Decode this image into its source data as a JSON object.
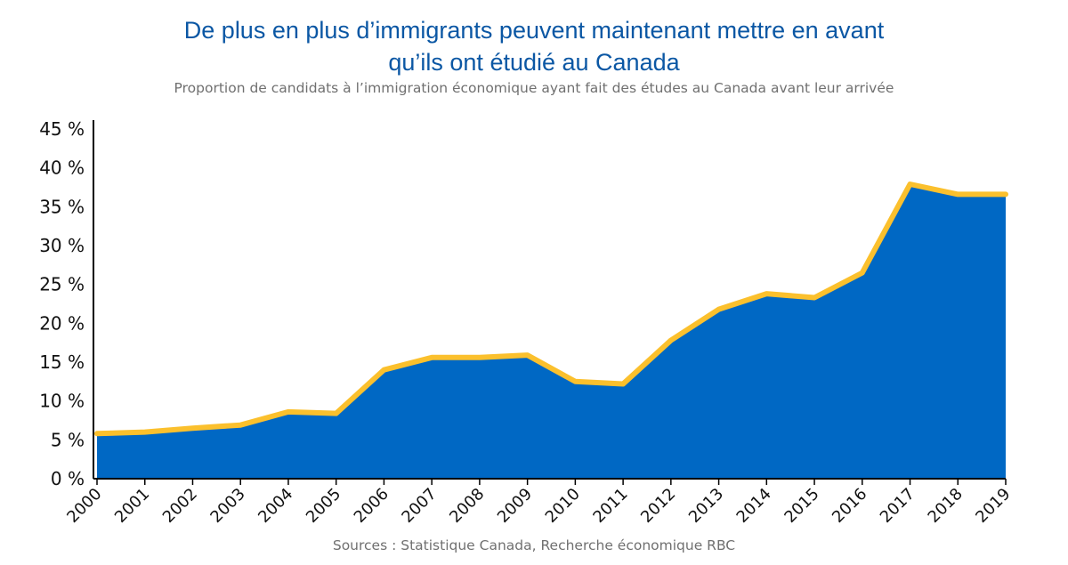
{
  "title_line1": "De plus en plus d’immigrants peuvent maintenant mettre en avant",
  "title_line2": "qu’ils ont étudié au Canada",
  "subtitle": "Proportion de candidats à l’immigration économique ayant fait des études au Canada avant leur arrivée",
  "source": "Sources : Statistique Canada, Recherche économique RBC",
  "colors": {
    "area": "#0068c4",
    "line": "#fbc02d",
    "title": "#0b57a4",
    "text": "#707070"
  },
  "chart_data": {
    "type": "area",
    "title": "De plus en plus d’immigrants peuvent maintenant mettre en avant qu’ils ont étudié au Canada",
    "subtitle": "Proportion de candidats à l’immigration économique ayant fait des études au Canada avant leur arrivée",
    "xlabel": "",
    "ylabel": "",
    "categories": [
      "2000",
      "2001",
      "2002",
      "2003",
      "2004",
      "2005",
      "2006",
      "2007",
      "2008",
      "2009",
      "2010",
      "2011",
      "2012",
      "2013",
      "2014",
      "2015",
      "2016",
      "2017",
      "2018",
      "2019"
    ],
    "values": [
      5.8,
      6.0,
      6.5,
      6.9,
      8.6,
      8.4,
      14.0,
      15.6,
      15.6,
      15.9,
      12.5,
      12.2,
      17.8,
      21.8,
      23.8,
      23.3,
      26.5,
      37.9,
      36.6,
      36.6
    ],
    "ylim": [
      0,
      45
    ],
    "yticks": [
      0,
      5,
      10,
      15,
      20,
      25,
      30,
      35,
      40,
      45
    ],
    "ytick_labels": [
      "0 %",
      "5 %",
      "10 %",
      "15 %",
      "20 %",
      "25 %",
      "30 %",
      "35 %",
      "40 %",
      "45 %"
    ],
    "grid": false,
    "legend": "none"
  }
}
